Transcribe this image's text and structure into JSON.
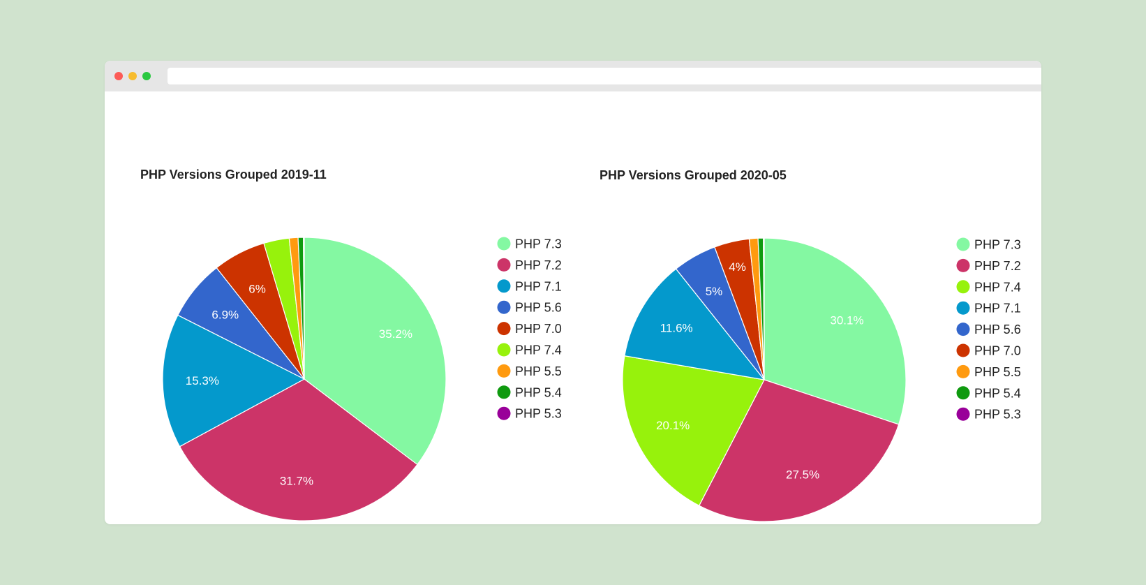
{
  "window": {
    "url": ""
  },
  "chart_data": [
    {
      "type": "pie",
      "title": "PHP Versions Grouped 2019-11",
      "slices": [
        {
          "name": "PHP 7.3",
          "value": 35.2,
          "label": "35.2%",
          "color": "#84f8a2"
        },
        {
          "name": "PHP 7.2",
          "value": 31.7,
          "label": "31.7%",
          "color": "#cc3468"
        },
        {
          "name": "PHP 7.1",
          "value": 15.3,
          "label": "15.3%",
          "color": "#0499cc"
        },
        {
          "name": "PHP 5.6",
          "value": 6.9,
          "label": "6.9%",
          "color": "#3366cc"
        },
        {
          "name": "PHP 7.0",
          "value": 6.0,
          "label": "6%",
          "color": "#cc3300"
        },
        {
          "name": "PHP 7.4",
          "value": 2.9,
          "label": "",
          "color": "#97f20c"
        },
        {
          "name": "PHP 5.5",
          "value": 1.0,
          "label": "",
          "color": "#ff9a0f"
        },
        {
          "name": "PHP 5.4",
          "value": 0.6,
          "label": "",
          "color": "#0f9a0f"
        },
        {
          "name": "PHP 5.3",
          "value": 0.1,
          "label": "",
          "color": "#990099"
        }
      ],
      "legend": [
        "PHP 7.3",
        "PHP 7.2",
        "PHP 7.1",
        "PHP 5.6",
        "PHP 7.0",
        "PHP 7.4",
        "PHP 5.5",
        "PHP 5.4",
        "PHP 5.3"
      ],
      "legend_position": "right"
    },
    {
      "type": "pie",
      "title": "PHP Versions Grouped 2020-05",
      "slices": [
        {
          "name": "PHP 7.3",
          "value": 30.1,
          "label": "30.1%",
          "color": "#84f8a2"
        },
        {
          "name": "PHP 7.2",
          "value": 27.5,
          "label": "27.5%",
          "color": "#cc3468"
        },
        {
          "name": "PHP 7.4",
          "value": 20.1,
          "label": "20.1%",
          "color": "#97f20c"
        },
        {
          "name": "PHP 7.1",
          "value": 11.6,
          "label": "11.6%",
          "color": "#0499cc"
        },
        {
          "name": "PHP 5.6",
          "value": 5.0,
          "label": "5%",
          "color": "#3366cc"
        },
        {
          "name": "PHP 7.0",
          "value": 4.0,
          "label": "4%",
          "color": "#cc3300"
        },
        {
          "name": "PHP 5.5",
          "value": 1.0,
          "label": "",
          "color": "#ff9a0f"
        },
        {
          "name": "PHP 5.4",
          "value": 0.6,
          "label": "",
          "color": "#0f9a0f"
        },
        {
          "name": "PHP 5.3",
          "value": 0.1,
          "label": "",
          "color": "#990099"
        }
      ],
      "legend": [
        "PHP 7.3",
        "PHP 7.2",
        "PHP 7.4",
        "PHP 7.1",
        "PHP 5.6",
        "PHP 7.0",
        "PHP 5.5",
        "PHP 5.4",
        "PHP 5.3"
      ],
      "legend_position": "right"
    }
  ]
}
